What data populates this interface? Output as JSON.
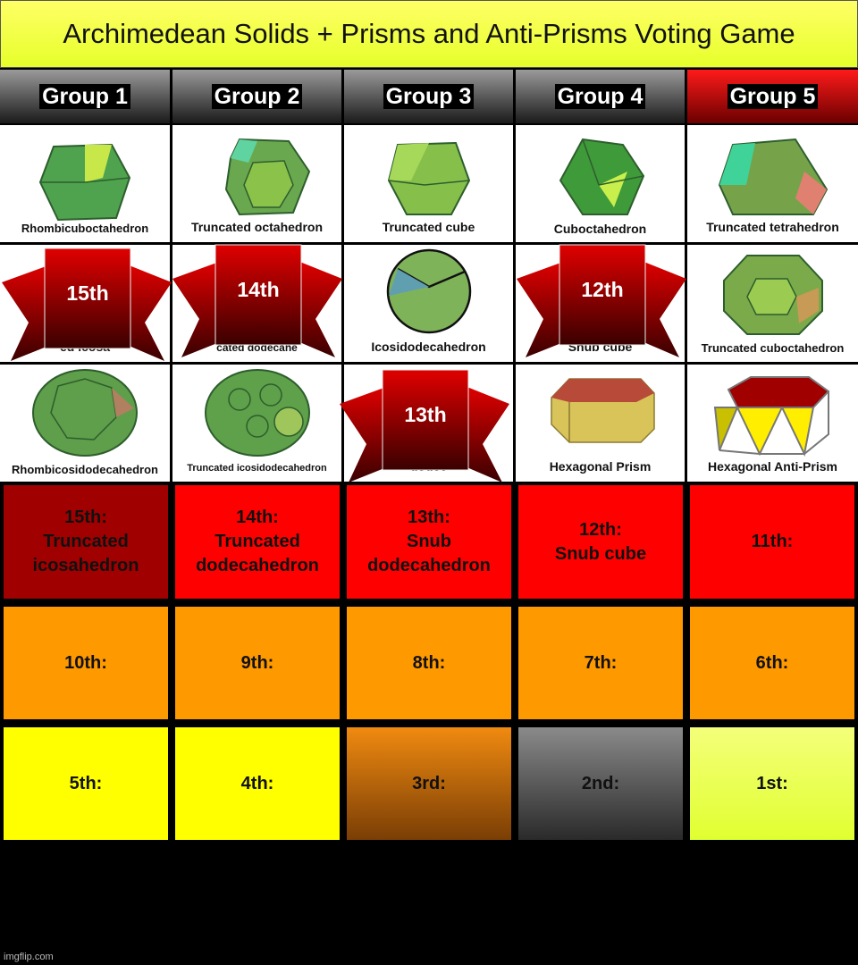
{
  "title": "Archimedean Solids + Prisms and Anti-Prisms Voting Game",
  "groups": [
    "Group 1",
    "Group 2",
    "Group 3",
    "Group 4",
    "Group 5"
  ],
  "solids": {
    "r0": [
      "Rhombicuboctahedron",
      "Truncated octahedron",
      "Truncated cube",
      "Cuboctahedron",
      "Truncated tetrahedron"
    ],
    "r1": [
      "ed icosa",
      "cated dodecahe",
      "Icosidodecahedron",
      "Snub cube",
      "Truncated cuboctahedron"
    ],
    "r2": [
      "Rhombicosidodecahedron",
      "Truncated icosidodecahedron",
      "dodec",
      "Hexagonal Prism",
      "Hexagonal Anti-Prism"
    ]
  },
  "ribbons": [
    "15th",
    "14th",
    "13th",
    "12th"
  ],
  "ranks": {
    "r0": [
      "15th:\nTruncated\nicosahedron",
      "14th:\nTruncated\ndodecahedron",
      "13th:\nSnub\ndodecahedron",
      "12th:\nSnub cube",
      "11th:"
    ],
    "r1": [
      "10th:",
      "9th:",
      "8th:",
      "7th:",
      "6th:"
    ],
    "r2": [
      "5th:",
      "4th:",
      "3rd:",
      "2nd:",
      "1st:"
    ]
  },
  "colors": {
    "title_bg": "#ffff66",
    "eliminated_red": "#a00000",
    "red": "#ff0000",
    "orange": "#ff9900",
    "yellow": "#ffff00",
    "bronze": "#b86a10",
    "silver": "#777777",
    "gold_pale": "#eaff55"
  },
  "watermark": "imgflip.com"
}
